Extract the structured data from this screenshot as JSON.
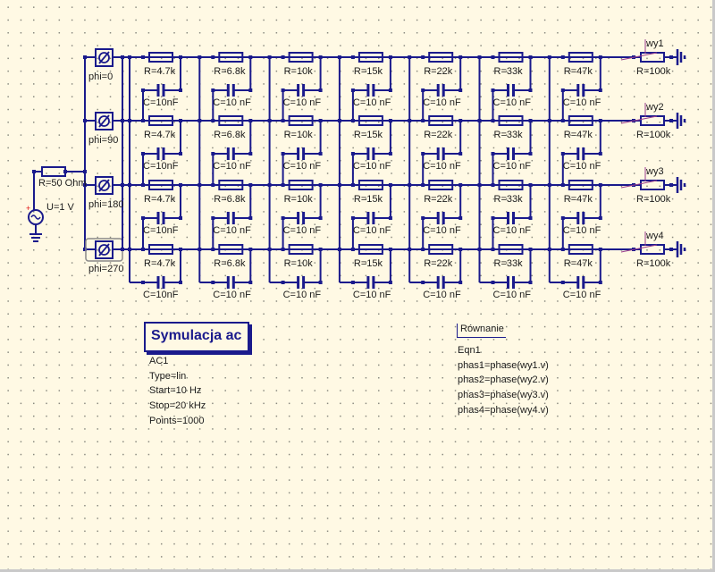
{
  "colors": {
    "wire": "#1a1a8c",
    "background": "#fff9e4",
    "probe": "#9a3d8c",
    "source_plus": "#e01010"
  },
  "source": {
    "resistor_label": "R=50 Ohm",
    "voltage_label": "U=1 V",
    "icon": "ac-voltage-source-icon"
  },
  "phase_shifters": [
    {
      "label": "phi=0"
    },
    {
      "label": "phi=90"
    },
    {
      "label": "phi=180"
    },
    {
      "label": "phi=270",
      "selected": true
    }
  ],
  "stages": [
    {
      "resistor": "R=4.7k",
      "capacitor": "C=10nF"
    },
    {
      "resistor": "R=6.8k",
      "capacitor": "C=10 nF"
    },
    {
      "resistor": "R=10k",
      "capacitor": "C=10 nF"
    },
    {
      "resistor": "R=15k",
      "capacitor": "C=10 nF"
    },
    {
      "resistor": "R=22k",
      "capacitor": "C=10 nF"
    },
    {
      "resistor": "R=33k",
      "capacitor": "C=10 nF"
    },
    {
      "resistor": "R=47k",
      "capacitor": "C=10 nF"
    }
  ],
  "outputs": [
    {
      "probe": "wy1",
      "load": "R=100k"
    },
    {
      "probe": "wy2",
      "load": "R=100k"
    },
    {
      "probe": "wy3",
      "load": "R=100k"
    },
    {
      "probe": "wy4",
      "load": "R=100k"
    }
  ],
  "simulation": {
    "title": "Symulacja ac",
    "lines": [
      "AC1",
      "Type=lin",
      "Start=10 Hz",
      "Stop=20 kHz",
      "Points=1000"
    ]
  },
  "equation": {
    "title": "Równanie",
    "lines": [
      "Eqn1",
      "phas1=phase(wy1.v)",
      "phas2=phase(wy2.v)",
      "phas3=phase(wy3.v)",
      "phas4=phase(wy4.v)"
    ]
  }
}
